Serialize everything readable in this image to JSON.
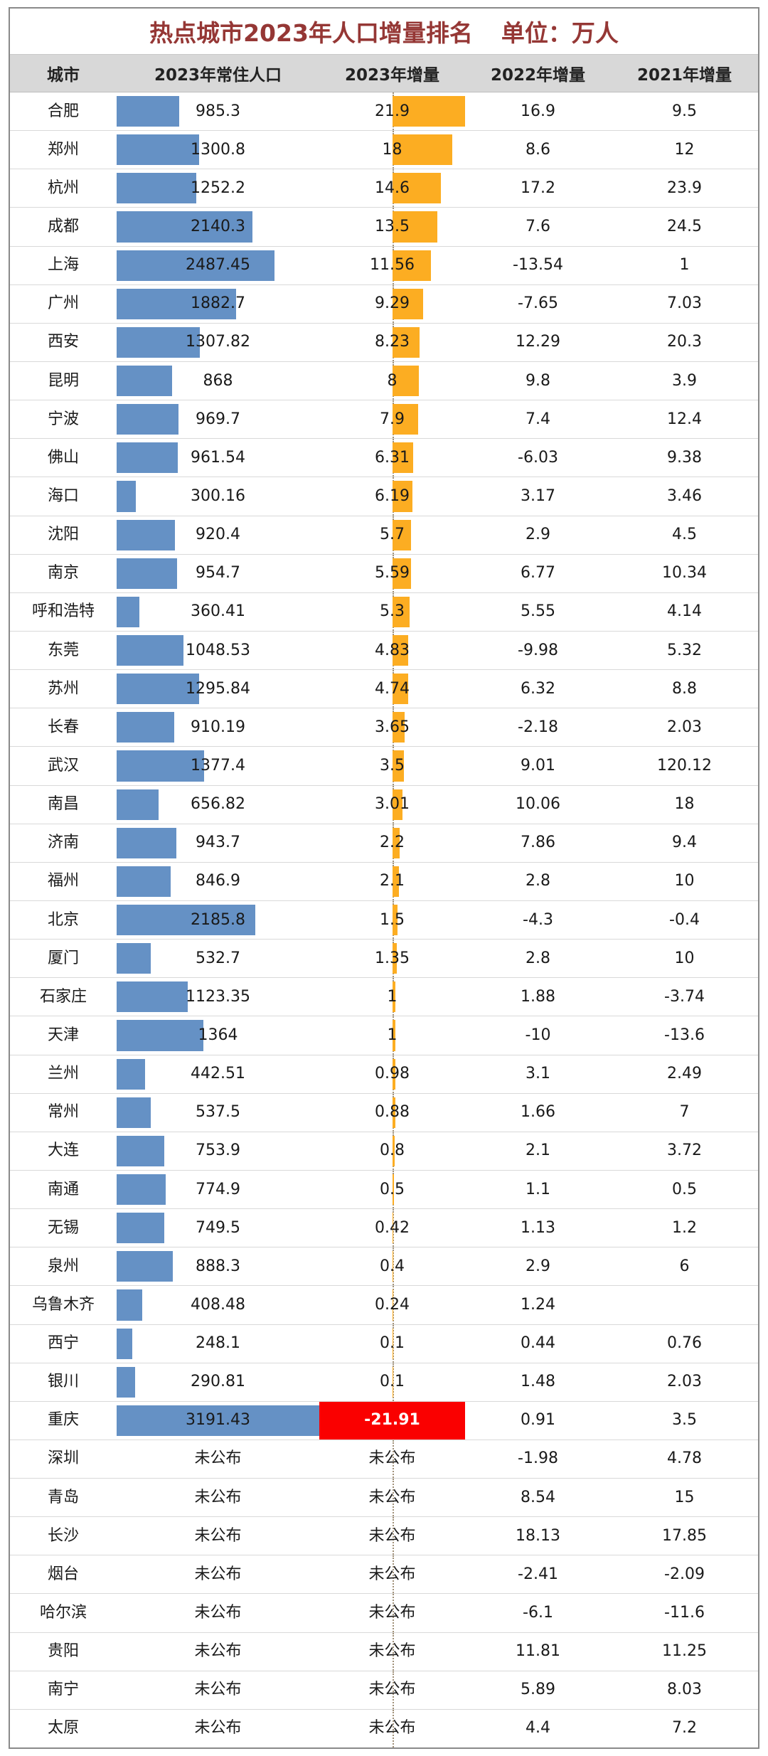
{
  "chart_data": {
    "type": "table",
    "title": "热点城市2023年人口增量排名",
    "unit_label": "单位：万人",
    "columns": [
      "城市",
      "2023年常住人口",
      "2023年增量",
      "2022年增量",
      "2021年增量"
    ],
    "scales": {
      "pop_max": 3191.43,
      "inc_max": 21.91
    },
    "colors": {
      "population_bar": "#6591C5",
      "increment_bar_positive": "#FCAD22",
      "increment_bar_negative": "#FA0000",
      "title_text": "#953735",
      "header_bg": "#D8D8D8"
    },
    "not_published_label": "未公布",
    "rows": [
      {
        "city": "合肥",
        "pop": "985.3",
        "inc": "21.9",
        "inc_2022": "16.9",
        "inc_2021": "9.5"
      },
      {
        "city": "郑州",
        "pop": "1300.8",
        "inc": "18",
        "inc_2022": "8.6",
        "inc_2021": "12"
      },
      {
        "city": "杭州",
        "pop": "1252.2",
        "inc": "14.6",
        "inc_2022": "17.2",
        "inc_2021": "23.9"
      },
      {
        "city": "成都",
        "pop": "2140.3",
        "inc": "13.5",
        "inc_2022": "7.6",
        "inc_2021": "24.5"
      },
      {
        "city": "上海",
        "pop": "2487.45",
        "inc": "11.56",
        "inc_2022": "-13.54",
        "inc_2021": "1"
      },
      {
        "city": "广州",
        "pop": "1882.7",
        "inc": "9.29",
        "inc_2022": "-7.65",
        "inc_2021": "7.03"
      },
      {
        "city": "西安",
        "pop": "1307.82",
        "inc": "8.23",
        "inc_2022": "12.29",
        "inc_2021": "20.3"
      },
      {
        "city": "昆明",
        "pop": "868",
        "inc": "8",
        "inc_2022": "9.8",
        "inc_2021": "3.9"
      },
      {
        "city": "宁波",
        "pop": "969.7",
        "inc": "7.9",
        "inc_2022": "7.4",
        "inc_2021": "12.4"
      },
      {
        "city": "佛山",
        "pop": "961.54",
        "inc": "6.31",
        "inc_2022": "-6.03",
        "inc_2021": "9.38"
      },
      {
        "city": "海口",
        "pop": "300.16",
        "inc": "6.19",
        "inc_2022": "3.17",
        "inc_2021": "3.46"
      },
      {
        "city": "沈阳",
        "pop": "920.4",
        "inc": "5.7",
        "inc_2022": "2.9",
        "inc_2021": "4.5"
      },
      {
        "city": "南京",
        "pop": "954.7",
        "inc": "5.59",
        "inc_2022": "6.77",
        "inc_2021": "10.34"
      },
      {
        "city": "呼和浩特",
        "pop": "360.41",
        "inc": "5.3",
        "inc_2022": "5.55",
        "inc_2021": "4.14"
      },
      {
        "city": "东莞",
        "pop": "1048.53",
        "inc": "4.83",
        "inc_2022": "-9.98",
        "inc_2021": "5.32"
      },
      {
        "city": "苏州",
        "pop": "1295.84",
        "inc": "4.74",
        "inc_2022": "6.32",
        "inc_2021": "8.8"
      },
      {
        "city": "长春",
        "pop": "910.19",
        "inc": "3.65",
        "inc_2022": "-2.18",
        "inc_2021": "2.03"
      },
      {
        "city": "武汉",
        "pop": "1377.4",
        "inc": "3.5",
        "inc_2022": "9.01",
        "inc_2021": "120.12"
      },
      {
        "city": "南昌",
        "pop": "656.82",
        "inc": "3.01",
        "inc_2022": "10.06",
        "inc_2021": "18"
      },
      {
        "city": "济南",
        "pop": "943.7",
        "inc": "2.2",
        "inc_2022": "7.86",
        "inc_2021": "9.4"
      },
      {
        "city": "福州",
        "pop": "846.9",
        "inc": "2.1",
        "inc_2022": "2.8",
        "inc_2021": "10"
      },
      {
        "city": "北京",
        "pop": "2185.8",
        "inc": "1.5",
        "inc_2022": "-4.3",
        "inc_2021": "-0.4"
      },
      {
        "city": "厦门",
        "pop": "532.7",
        "inc": "1.35",
        "inc_2022": "2.8",
        "inc_2021": "10"
      },
      {
        "city": "石家庄",
        "pop": "1123.35",
        "inc": "1",
        "inc_2022": "1.88",
        "inc_2021": "-3.74"
      },
      {
        "city": "天津",
        "pop": "1364",
        "inc": "1",
        "inc_2022": "-10",
        "inc_2021": "-13.6"
      },
      {
        "city": "兰州",
        "pop": "442.51",
        "inc": "0.98",
        "inc_2022": "3.1",
        "inc_2021": "2.49"
      },
      {
        "city": "常州",
        "pop": "537.5",
        "inc": "0.88",
        "inc_2022": "1.66",
        "inc_2021": "7"
      },
      {
        "city": "大连",
        "pop": "753.9",
        "inc": "0.8",
        "inc_2022": "2.1",
        "inc_2021": "3.72"
      },
      {
        "city": "南通",
        "pop": "774.9",
        "inc": "0.5",
        "inc_2022": "1.1",
        "inc_2021": "0.5"
      },
      {
        "city": "无锡",
        "pop": "749.5",
        "inc": "0.42",
        "inc_2022": "1.13",
        "inc_2021": "1.2"
      },
      {
        "city": "泉州",
        "pop": "888.3",
        "inc": "0.4",
        "inc_2022": "2.9",
        "inc_2021": "6"
      },
      {
        "city": "乌鲁木齐",
        "pop": "408.48",
        "inc": "0.24",
        "inc_2022": "1.24",
        "inc_2021": ""
      },
      {
        "city": "西宁",
        "pop": "248.1",
        "inc": "0.1",
        "inc_2022": "0.44",
        "inc_2021": "0.76"
      },
      {
        "city": "银川",
        "pop": "290.81",
        "inc": "0.1",
        "inc_2022": "1.48",
        "inc_2021": "2.03"
      },
      {
        "city": "重庆",
        "pop": "3191.43",
        "inc": "-21.91",
        "inc_2022": "0.91",
        "inc_2021": "3.5"
      },
      {
        "city": "深圳",
        "pop": "未公布",
        "inc": "未公布",
        "inc_2022": "-1.98",
        "inc_2021": "4.78"
      },
      {
        "city": "青岛",
        "pop": "未公布",
        "inc": "未公布",
        "inc_2022": "8.54",
        "inc_2021": "15"
      },
      {
        "city": "长沙",
        "pop": "未公布",
        "inc": "未公布",
        "inc_2022": "18.13",
        "inc_2021": "17.85"
      },
      {
        "city": "烟台",
        "pop": "未公布",
        "inc": "未公布",
        "inc_2022": "-2.41",
        "inc_2021": "-2.09"
      },
      {
        "city": "哈尔滨",
        "pop": "未公布",
        "inc": "未公布",
        "inc_2022": "-6.1",
        "inc_2021": "-11.6"
      },
      {
        "city": "贵阳",
        "pop": "未公布",
        "inc": "未公布",
        "inc_2022": "11.81",
        "inc_2021": "11.25"
      },
      {
        "city": "南宁",
        "pop": "未公布",
        "inc": "未公布",
        "inc_2022": "5.89",
        "inc_2021": "8.03"
      },
      {
        "city": "太原",
        "pop": "未公布",
        "inc": "未公布",
        "inc_2022": "4.4",
        "inc_2021": "7.2"
      }
    ]
  }
}
